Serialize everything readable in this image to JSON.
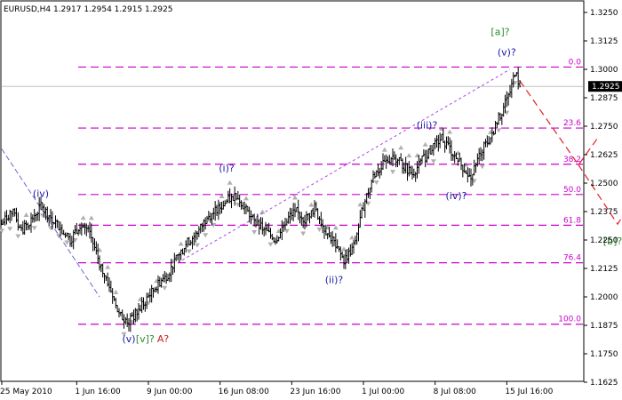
{
  "header": {
    "symbol_text": "EURUSD,H4  1.2917 1.2954 1.2915 1.2925"
  },
  "chart_data": {
    "type": "candlestick",
    "ylim": [
      1.1625,
      1.325
    ],
    "xlim": [
      "2010-05-25",
      "2010-07-22"
    ],
    "y_ticks": [
      "1.3250",
      "1.3125",
      "1.3000",
      "1.2875",
      "1.2750",
      "1.2625",
      "1.2500",
      "1.2375",
      "1.2250",
      "1.2125",
      "1.2000",
      "1.1875",
      "1.1750",
      "1.1625"
    ],
    "x_ticks": [
      {
        "date": "2010-05-25",
        "label": "25 May 2010"
      },
      {
        "date": "2010-06-01T16:00",
        "label": "1 Jun 16:00"
      },
      {
        "date": "2010-06-09",
        "label": "9 Jun 00:00"
      },
      {
        "date": "2010-06-16T08:00",
        "label": "16 Jun 08:00"
      },
      {
        "date": "2010-06-23T16:00",
        "label": "23 Jun 16:00"
      },
      {
        "date": "2010-07-01",
        "label": "1 Jul 00:00"
      },
      {
        "date": "2010-07-08T08:00",
        "label": "8 Jul 08:00"
      },
      {
        "date": "2010-07-15T16:00",
        "label": "15 Jul 16:00"
      }
    ],
    "current_price": "1.2925",
    "series_path": [
      [
        "2010-05-25",
        1.232
      ],
      [
        "2010-05-26",
        1.238
      ],
      [
        "2010-05-27",
        1.229
      ],
      [
        "2010-05-28",
        1.234
      ],
      [
        "2010-05-29",
        1.24
      ],
      [
        "2010-05-31",
        1.23
      ],
      [
        "2010-06-01",
        1.225
      ],
      [
        "2010-06-02",
        1.232
      ],
      [
        "2010-06-03",
        1.228
      ],
      [
        "2010-06-04",
        1.215
      ],
      [
        "2010-06-05",
        1.205
      ],
      [
        "2010-06-06",
        1.192
      ],
      [
        "2010-06-07",
        1.189
      ],
      [
        "2010-06-08",
        1.194
      ],
      [
        "2010-06-09",
        1.2
      ],
      [
        "2010-06-10",
        1.206
      ],
      [
        "2010-06-11",
        1.21
      ],
      [
        "2010-06-12",
        1.218
      ],
      [
        "2010-06-13",
        1.224
      ],
      [
        "2010-06-14",
        1.228
      ],
      [
        "2010-06-15",
        1.235
      ],
      [
        "2010-06-16",
        1.238
      ],
      [
        "2010-06-17",
        1.242
      ],
      [
        "2010-06-18",
        1.245
      ],
      [
        "2010-06-19",
        1.238
      ],
      [
        "2010-06-20",
        1.232
      ],
      [
        "2010-06-21",
        1.229
      ],
      [
        "2010-06-22",
        1.225
      ],
      [
        "2010-06-23",
        1.233
      ],
      [
        "2010-06-24",
        1.238
      ],
      [
        "2010-06-25",
        1.234
      ],
      [
        "2010-06-26",
        1.239
      ],
      [
        "2010-06-27",
        1.23
      ],
      [
        "2010-06-28",
        1.224
      ],
      [
        "2010-06-29",
        1.216
      ],
      [
        "2010-06-30",
        1.222
      ],
      [
        "2010-07-01",
        1.24
      ],
      [
        "2010-07-02",
        1.253
      ],
      [
        "2010-07-03",
        1.258
      ],
      [
        "2010-07-04",
        1.262
      ],
      [
        "2010-07-05",
        1.258
      ],
      [
        "2010-07-06",
        1.254
      ],
      [
        "2010-07-07",
        1.26
      ],
      [
        "2010-07-08",
        1.265
      ],
      [
        "2010-07-09",
        1.27
      ],
      [
        "2010-07-10",
        1.264
      ],
      [
        "2010-07-11",
        1.258
      ],
      [
        "2010-07-12",
        1.252
      ],
      [
        "2010-07-13",
        1.264
      ],
      [
        "2010-07-14",
        1.27
      ],
      [
        "2010-07-15",
        1.28
      ],
      [
        "2010-07-16",
        1.29
      ],
      [
        "2010-07-16T12:00",
        1.299
      ],
      [
        "2010-07-17",
        1.2925
      ]
    ],
    "fib_levels": [
      {
        "label": "0.0",
        "price": 1.301
      },
      {
        "label": "23.6",
        "price": 1.2742
      },
      {
        "label": "38.2",
        "price": 1.2583
      },
      {
        "label": "50.0",
        "price": 1.245
      },
      {
        "label": "61.8",
        "price": 1.2315
      },
      {
        "label": "76.4",
        "price": 1.215
      },
      {
        "label": "100.0",
        "price": 1.188
      }
    ],
    "wave_labels": [
      {
        "text": "(iv)",
        "date": "2010-05-29",
        "price": 1.244,
        "color": "#1a1aa8"
      },
      {
        "text": "(v)",
        "date": "2010-06-07",
        "price": 1.18,
        "color": "#1a1aa8"
      },
      {
        "text": "[v]?",
        "date": "2010-06-08T16:00",
        "price": 1.18,
        "color": "#2e8b2e"
      },
      {
        "text": "A?",
        "date": "2010-06-10T12:00",
        "price": 1.18,
        "color": "#d21818"
      },
      {
        "text": "(i)?",
        "date": "2010-06-17",
        "price": 1.255,
        "color": "#1a1aa8"
      },
      {
        "text": "(ii)?",
        "date": "2010-06-28",
        "price": 1.206,
        "color": "#1a1aa8"
      },
      {
        "text": "(iii)?",
        "date": "2010-07-07T12:00",
        "price": 1.274,
        "color": "#1a1aa8"
      },
      {
        "text": "(iv)?",
        "date": "2010-07-10T12:00",
        "price": 1.243,
        "color": "#1a1aa8"
      },
      {
        "text": "(v)?",
        "date": "2010-07-15T16:00",
        "price": 1.306,
        "color": "#1a1aa8"
      },
      {
        "text": "[a]?",
        "date": "2010-07-15",
        "price": 1.315,
        "color": "#2e8b2e"
      },
      {
        "text": "[b]?",
        "date": "2010-07-26T12:00",
        "price": 1.223,
        "color": "#2e8b2e"
      }
    ],
    "projection_path": [
      [
        "2010-07-17",
        1.295
      ],
      [
        "2010-07-23",
        1.258
      ],
      [
        "2010-07-25",
        1.27
      ]
    ],
    "projection_path_2": [
      [
        "2010-07-23",
        1.258
      ],
      [
        "2010-07-27",
        1.232
      ],
      [
        "2010-07-29",
        1.245
      ]
    ],
    "channel_line": [
      [
        "2010-06-12",
        1.215
      ],
      [
        "2010-07-16",
        1.3
      ]
    ],
    "down_channel_line": [
      [
        "2010-05-25",
        1.265
      ],
      [
        "2010-06-04",
        1.2
      ]
    ],
    "colors": {
      "candle": "#000000",
      "fib": "#cc00cc",
      "channel": "#aa44ee",
      "down_channel": "#6666cc",
      "projection": "#e02020",
      "fractal": "#b0b0b0",
      "current_line": "#c0c0c0"
    }
  }
}
